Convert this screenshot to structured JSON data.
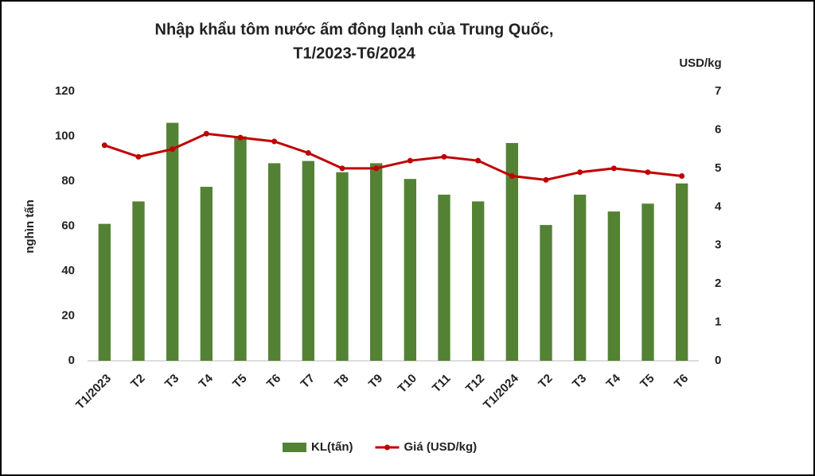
{
  "chart_data": {
    "type": "bar-line",
    "title": [
      "Nhập khẩu tôm nước ấm đông lạnh của Trung Quốc,",
      "T1/2023-T6/2024"
    ],
    "y_label": "nghìn tấn",
    "y2_label": "USD/kg",
    "categories": [
      "T1/2023",
      "T2",
      "T3",
      "T4",
      "T5",
      "T6",
      "T7",
      "T8",
      "T9",
      "T10",
      "T11",
      "T12",
      "T1/2024",
      "T2",
      "T3",
      "T4",
      "T5",
      "T6"
    ],
    "series": [
      {
        "name": "KL(tấn)",
        "color": "#548235",
        "kind": "bar",
        "values": [
          61,
          71,
          106,
          77.5,
          100,
          88,
          89,
          84,
          88,
          81,
          74,
          71,
          97,
          60.5,
          74,
          66.5,
          70,
          79
        ]
      },
      {
        "name": "Giá (USD/kg)",
        "color": "#c00000",
        "kind": "line",
        "axis": "y2",
        "values": [
          5.6,
          5.3,
          5.5,
          5.9,
          5.8,
          5.7,
          5.4,
          5.0,
          5.0,
          5.2,
          5.3,
          5.2,
          4.8,
          4.7,
          4.9,
          5.0,
          4.9,
          4.8
        ]
      }
    ],
    "ylim": [
      0,
      120
    ],
    "yticks": [
      0,
      20,
      40,
      60,
      80,
      100,
      120
    ],
    "y2lim": [
      0,
      7
    ],
    "y2ticks": [
      0,
      1,
      2,
      3,
      4,
      5,
      6,
      7
    ],
    "grid": false,
    "legend": "bottom"
  }
}
